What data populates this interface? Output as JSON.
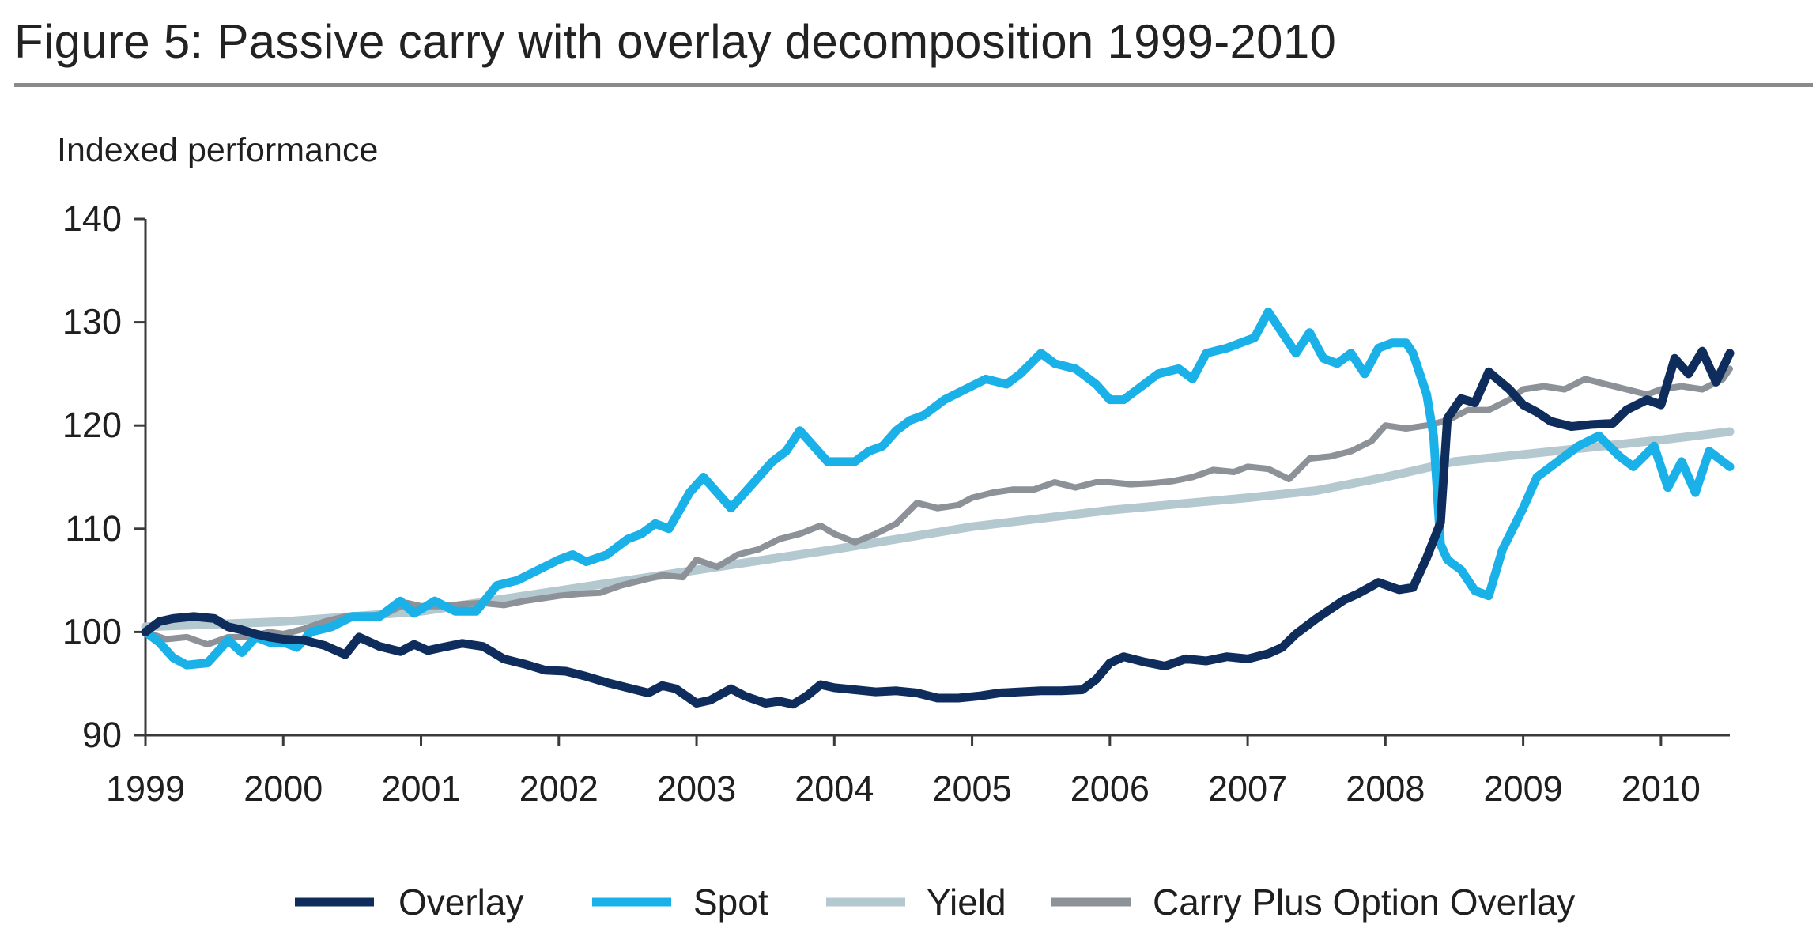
{
  "title": "Figure 5: Passive carry with overlay decomposition 1999-2010",
  "chart_data": {
    "type": "line",
    "title": "",
    "xlabel": "",
    "ylabel": "Indexed performance",
    "xlim": [
      1999,
      2010.5
    ],
    "ylim": [
      90,
      140
    ],
    "y_ticks": [
      90,
      100,
      110,
      120,
      130,
      140
    ],
    "x_ticks": [
      1999,
      2000,
      2001,
      2002,
      2003,
      2004,
      2005,
      2006,
      2007,
      2008,
      2009,
      2010
    ],
    "grid": false,
    "legend_position": "bottom-center",
    "series": [
      {
        "name": "Overlay",
        "color": "#0e2d5c",
        "x": [
          1999.0,
          1999.1,
          1999.2,
          1999.35,
          1999.5,
          1999.6,
          1999.7,
          1999.8,
          1999.9,
          2000.0,
          2000.15,
          2000.3,
          2000.45,
          2000.55,
          2000.7,
          2000.85,
          2000.95,
          2001.05,
          2001.15,
          2001.3,
          2001.45,
          2001.6,
          2001.75,
          2001.9,
          2002.05,
          2002.2,
          2002.35,
          2002.5,
          2002.65,
          2002.75,
          2002.85,
          2003.0,
          2003.1,
          2003.25,
          2003.35,
          2003.5,
          2003.6,
          2003.7,
          2003.8,
          2003.9,
          2004.0,
          2004.15,
          2004.3,
          2004.45,
          2004.6,
          2004.75,
          2004.9,
          2005.05,
          2005.2,
          2005.35,
          2005.5,
          2005.65,
          2005.8,
          2005.9,
          2006.0,
          2006.1,
          2006.25,
          2006.4,
          2006.55,
          2006.7,
          2006.85,
          2007.0,
          2007.15,
          2007.25,
          2007.35,
          2007.5,
          2007.6,
          2007.7,
          2007.8,
          2007.95,
          2008.1,
          2008.2,
          2008.3,
          2008.4,
          2008.45,
          2008.55,
          2008.65,
          2008.75,
          2008.9,
          2009.0,
          2009.1,
          2009.2,
          2009.35,
          2009.5,
          2009.65,
          2009.75,
          2009.9,
          2010.0,
          2010.1,
          2010.2,
          2010.3,
          2010.4,
          2010.5
        ],
        "values": [
          100,
          101,
          101.3,
          101.5,
          101.3,
          100.5,
          100.2,
          99.8,
          99.5,
          99.3,
          99.2,
          98.7,
          97.8,
          99.5,
          98.6,
          98.1,
          98.8,
          98.2,
          98.5,
          98.9,
          98.6,
          97.4,
          96.9,
          96.3,
          96.2,
          95.7,
          95.1,
          94.6,
          94.1,
          94.8,
          94.5,
          93.1,
          93.4,
          94.5,
          93.8,
          93.1,
          93.3,
          93.0,
          93.8,
          94.9,
          94.6,
          94.4,
          94.2,
          94.3,
          94.1,
          93.6,
          93.6,
          93.8,
          94.1,
          94.2,
          94.3,
          94.3,
          94.4,
          95.4,
          97.0,
          97.6,
          97.1,
          96.7,
          97.4,
          97.2,
          97.6,
          97.4,
          97.9,
          98.5,
          99.8,
          101.3,
          102.2,
          103.1,
          103.7,
          104.8,
          104.1,
          104.3,
          107.2,
          110.6,
          120.7,
          122.6,
          122.2,
          125.2,
          123.5,
          122.0,
          121.3,
          120.4,
          119.9,
          120.1,
          120.2,
          121.5,
          122.5,
          122.0,
          126.5,
          125.0,
          127.2,
          124.2,
          127.0
        ],
        "width": 11
      },
      {
        "name": "Spot",
        "color": "#1ab0e8",
        "x": [
          1999.0,
          1999.1,
          1999.2,
          1999.3,
          1999.45,
          1999.6,
          1999.7,
          1999.8,
          1999.9,
          2000.0,
          2000.1,
          2000.2,
          2000.35,
          2000.5,
          2000.7,
          2000.85,
          2000.95,
          2001.1,
          2001.25,
          2001.4,
          2001.55,
          2001.7,
          2001.85,
          2002.0,
          2002.1,
          2002.2,
          2002.35,
          2002.5,
          2002.6,
          2002.7,
          2002.8,
          2002.95,
          2003.05,
          2003.15,
          2003.25,
          2003.35,
          2003.45,
          2003.55,
          2003.65,
          2003.75,
          2003.85,
          2003.95,
          2004.05,
          2004.15,
          2004.25,
          2004.35,
          2004.45,
          2004.55,
          2004.65,
          2004.8,
          2004.95,
          2005.1,
          2005.25,
          2005.35,
          2005.5,
          2005.6,
          2005.75,
          2005.9,
          2006.0,
          2006.1,
          2006.25,
          2006.35,
          2006.5,
          2006.6,
          2006.7,
          2006.85,
          2006.95,
          2007.05,
          2007.15,
          2007.25,
          2007.35,
          2007.45,
          2007.55,
          2007.65,
          2007.75,
          2007.85,
          2007.95,
          2008.05,
          2008.15,
          2008.2,
          2008.3,
          2008.35,
          2008.4,
          2008.45,
          2008.55,
          2008.65,
          2008.75,
          2008.85,
          2009.0,
          2009.1,
          2009.25,
          2009.4,
          2009.55,
          2009.7,
          2009.8,
          2009.95,
          2010.05,
          2010.15,
          2010.25,
          2010.35,
          2010.45,
          2010.5
        ],
        "values": [
          100,
          99,
          97.5,
          96.8,
          97,
          99.2,
          98,
          99.5,
          99,
          99,
          98.5,
          100,
          100.5,
          101.5,
          101.5,
          103,
          101.8,
          103,
          102,
          102,
          104.5,
          105,
          106,
          107,
          107.5,
          106.8,
          107.5,
          109,
          109.5,
          110.5,
          110,
          113.5,
          115,
          113.5,
          112,
          113.5,
          115,
          116.5,
          117.5,
          119.5,
          118,
          116.5,
          116.5,
          116.5,
          117.5,
          118,
          119.5,
          120.5,
          121,
          122.5,
          123.5,
          124.5,
          124,
          125,
          127,
          126,
          125.5,
          124,
          122.5,
          122.5,
          124,
          125,
          125.5,
          124.5,
          127,
          127.5,
          128,
          128.5,
          131,
          129,
          127,
          129,
          126.5,
          126,
          127,
          125,
          127.5,
          128,
          128,
          127,
          123,
          119,
          108.5,
          107,
          106,
          104,
          103.5,
          108,
          112,
          115,
          116.5,
          118,
          119,
          117,
          116,
          118,
          114,
          116.5,
          113.5,
          117.5,
          116.5,
          116
        ],
        "width": 11
      },
      {
        "name": "Yield",
        "color": "#b4c8cf",
        "x": [
          1999.0,
          2000.0,
          2001.0,
          2002.0,
          2003.0,
          2004.0,
          2005.0,
          2006.0,
          2007.0,
          2007.5,
          2008.0,
          2008.5,
          2009.0,
          2009.5,
          2010.0,
          2010.5
        ],
        "values": [
          100.5,
          101,
          102,
          104,
          106,
          108,
          110.2,
          111.8,
          113,
          113.7,
          115,
          116.5,
          117.2,
          117.9,
          118.6,
          119.4
        ],
        "width": 11
      },
      {
        "name": "Carry Plus Option Overlay",
        "color": "#8d9198",
        "x": [
          1999.0,
          1999.15,
          1999.3,
          1999.45,
          1999.6,
          1999.75,
          1999.9,
          2000.0,
          2000.15,
          2000.3,
          2000.45,
          2000.6,
          2000.75,
          2000.9,
          2001.0,
          2001.15,
          2001.3,
          2001.45,
          2001.6,
          2001.75,
          2001.9,
          2002.0,
          2002.15,
          2002.3,
          2002.45,
          2002.6,
          2002.75,
          2002.9,
          2003.0,
          2003.15,
          2003.3,
          2003.45,
          2003.6,
          2003.75,
          2003.9,
          2004.0,
          2004.15,
          2004.3,
          2004.45,
          2004.6,
          2004.75,
          2004.9,
          2005.0,
          2005.15,
          2005.3,
          2005.45,
          2005.6,
          2005.75,
          2005.9,
          2006.0,
          2006.15,
          2006.3,
          2006.45,
          2006.6,
          2006.75,
          2006.9,
          2007.0,
          2007.15,
          2007.3,
          2007.45,
          2007.6,
          2007.75,
          2007.9,
          2008.0,
          2008.15,
          2008.3,
          2008.45,
          2008.6,
          2008.75,
          2008.9,
          2009.0,
          2009.15,
          2009.3,
          2009.45,
          2009.6,
          2009.75,
          2009.9,
          2010.0,
          2010.15,
          2010.3,
          2010.45,
          2010.5
        ],
        "values": [
          100,
          99.3,
          99.5,
          98.8,
          99.5,
          99.5,
          100,
          99.8,
          100.3,
          101,
          101.5,
          101.5,
          101.8,
          102.8,
          102.5,
          102.5,
          102.7,
          102.8,
          102.6,
          103,
          103.3,
          103.5,
          103.7,
          103.8,
          104.5,
          105,
          105.5,
          105.3,
          107,
          106.3,
          107.5,
          108,
          109,
          109.5,
          110.3,
          109.5,
          108.7,
          109.5,
          110.5,
          112.5,
          112,
          112.3,
          113,
          113.5,
          113.8,
          113.8,
          114.5,
          114,
          114.5,
          114.5,
          114.3,
          114.4,
          114.6,
          115,
          115.7,
          115.5,
          116,
          115.8,
          114.8,
          116.8,
          117,
          117.5,
          118.5,
          120,
          119.7,
          120,
          120.5,
          121.5,
          121.5,
          122.5,
          123.5,
          123.8,
          123.5,
          124.5,
          124,
          123.5,
          123,
          123.5,
          123.8,
          123.5,
          124.5,
          125.5
        ],
        "width": 8
      }
    ]
  }
}
